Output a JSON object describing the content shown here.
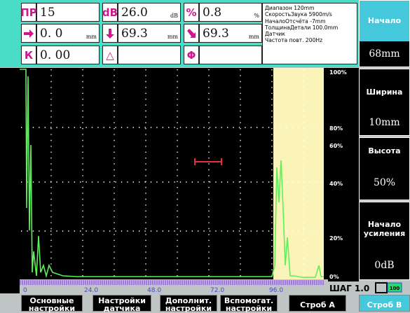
{
  "top_panel": {
    "rows": [
      [
        {
          "label": "ПР",
          "value": "15"
        },
        {
          "label": "dB",
          "value": "26.0",
          "unit": "dB"
        },
        {
          "label": "%",
          "value": "0.8",
          "unit": "%"
        }
      ],
      [
        {
          "value": "0. 0",
          "unit": "mm"
        },
        {
          "value": "69.3",
          "unit": "mm"
        },
        {
          "value": "69.3",
          "unit": "mm"
        }
      ],
      [
        {
          "label": "К",
          "value": "0. 00"
        },
        {
          "label": "△"
        },
        {
          "label": "Φ"
        }
      ]
    ],
    "info": [
      "Диапазон 120mm",
      "СкоростьЗвука 5900m/s",
      "НачалоОтсчёта -7mm",
      "ТолщинаДетали 100.0mm",
      "Датчик",
      "Частота повт. 200Hz"
    ]
  },
  "side_buttons": [
    {
      "label": "Начало",
      "value": "68mm"
    },
    {
      "label": "Ширина",
      "value": "10mm"
    },
    {
      "label": "Высота",
      "value": "50%"
    },
    {
      "label": "Начало усиления",
      "value": "0dB"
    }
  ],
  "scan": {
    "x_labels": [
      "0",
      "24.0",
      "48.0",
      "72.0",
      "96.0"
    ],
    "y_labels": [
      "100%",
      "80%",
      "60%",
      "40%",
      "20%",
      "0%"
    ]
  },
  "status": {
    "step": "ШАГ 1.0",
    "battery": "100"
  },
  "bottom_buttons": [
    "Основные настройки",
    "Настройки датчика",
    "Дополнит. настройки",
    "Вспомогат. настройки",
    "Строб A",
    "Строб B"
  ]
}
